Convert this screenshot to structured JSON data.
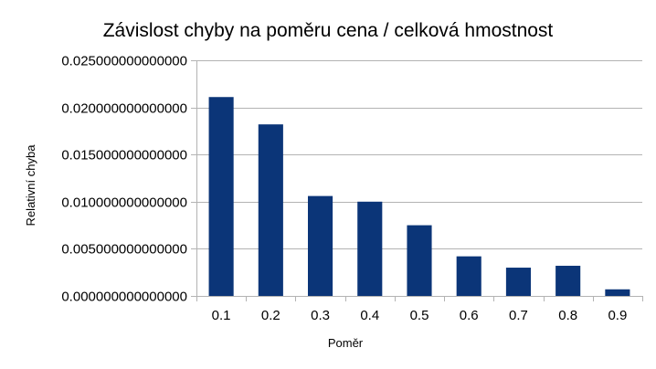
{
  "chart_data": {
    "type": "bar",
    "title": "Závislost chyby na poměru cena / celková hmostnost",
    "xlabel": "Poměr",
    "ylabel": "Relativní chyba",
    "categories": [
      "0.1",
      "0.2",
      "0.3",
      "0.4",
      "0.5",
      "0.6",
      "0.7",
      "0.8",
      "0.9"
    ],
    "series": [
      {
        "values": [
          0.0211,
          0.0182,
          0.0106,
          0.01,
          0.0075,
          0.0042,
          0.003,
          0.0032,
          0.0007
        ]
      }
    ],
    "ylim": [
      0,
      0.025
    ],
    "yticks": [
      0,
      0.005,
      0.01,
      0.015,
      0.02,
      0.025
    ],
    "ytick_labels": [
      "0.000000000000000",
      "0.005000000000000",
      "0.010000000000000",
      "0.015000000000000",
      "0.020000000000000",
      "0.025000000000000"
    ],
    "grid": true,
    "legend": "none",
    "colors": {
      "bar": "#0b3578",
      "grid": "#b3b3b3",
      "axis": "#b3b3b3",
      "text": "#000000"
    }
  }
}
